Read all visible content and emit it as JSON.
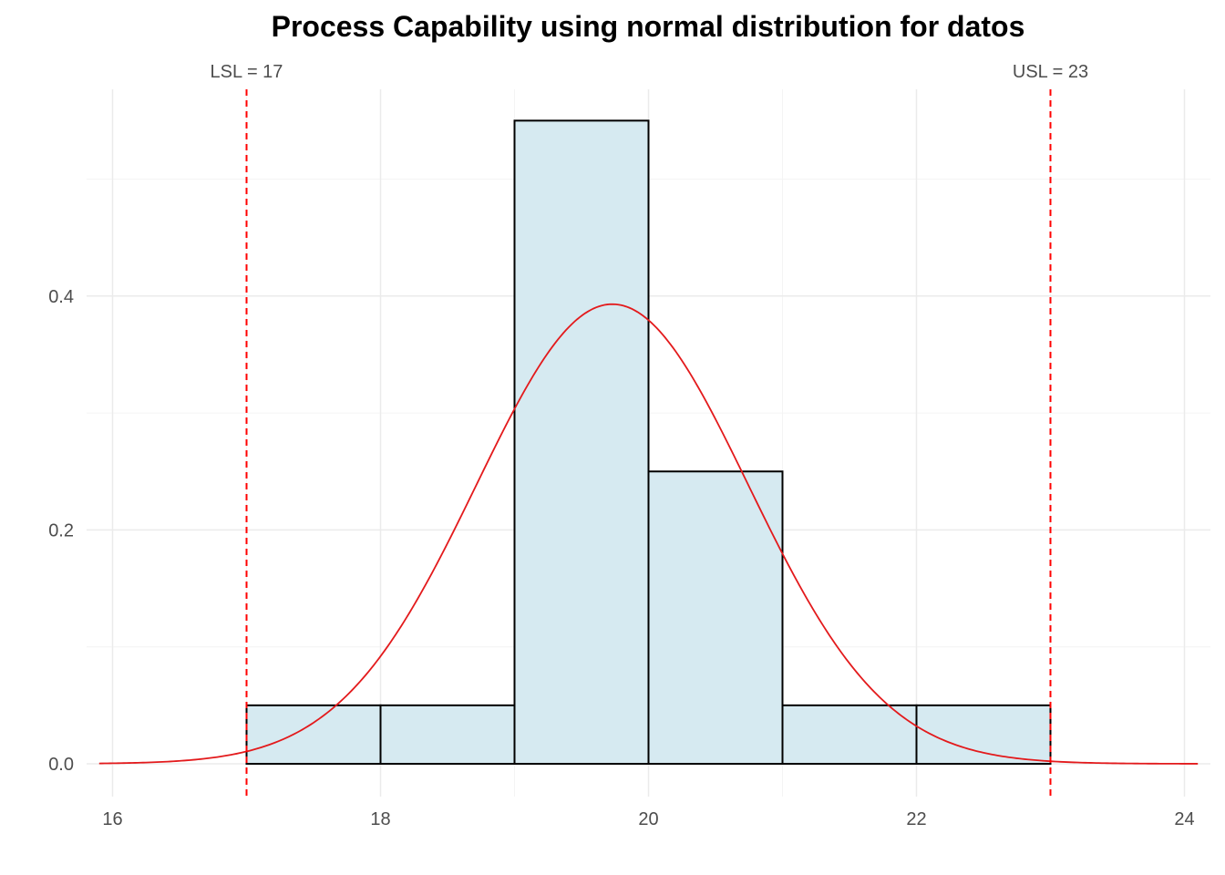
{
  "chart_data": {
    "type": "bar",
    "subtype": "histogram-with-density",
    "title": "Process Capability using normal distribution for datos",
    "xlabel": "",
    "ylabel": "",
    "xlim": [
      15.9,
      24.1
    ],
    "ylim": [
      0,
      0.55
    ],
    "x_ticks": [
      16,
      18,
      20,
      22,
      24
    ],
    "y_ticks": [
      0.0,
      0.2,
      0.4
    ],
    "x_tick_labels": [
      "16",
      "18",
      "20",
      "22",
      "24"
    ],
    "y_tick_labels": [
      "0.0",
      "0.2",
      "0.4"
    ],
    "grid": true,
    "bins": [
      {
        "x_start": 17,
        "x_end": 18,
        "density": 0.05
      },
      {
        "x_start": 18,
        "x_end": 19,
        "density": 0.05
      },
      {
        "x_start": 19,
        "x_end": 20,
        "density": 0.55
      },
      {
        "x_start": 20,
        "x_end": 21,
        "density": 0.25
      },
      {
        "x_start": 21,
        "x_end": 22,
        "density": 0.05
      },
      {
        "x_start": 22,
        "x_end": 23,
        "density": 0.05
      }
    ],
    "density_curve": {
      "distribution": "normal",
      "mean": 19.73,
      "sd": 1.015
    },
    "spec_limits": [
      {
        "name": "LSL",
        "value": 17,
        "label": "LSL = 17"
      },
      {
        "name": "USL",
        "value": 23,
        "label": "USL = 23"
      }
    ],
    "colors": {
      "bar_fill": "#d6eaf1",
      "bar_stroke": "#000000",
      "curve": "#e31a1c",
      "spec_line": "#ff0000",
      "grid": "#ebebeb"
    }
  }
}
